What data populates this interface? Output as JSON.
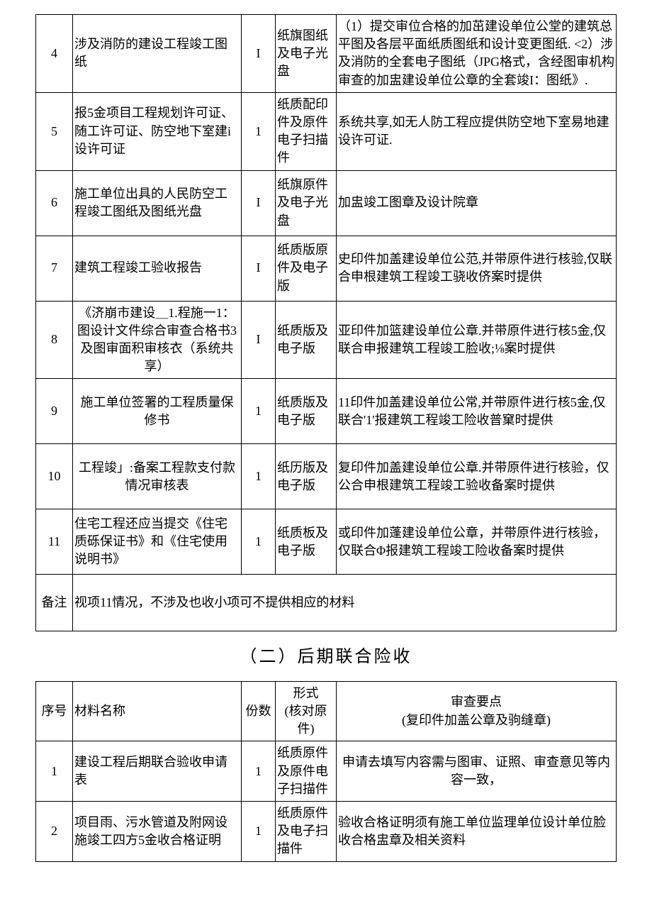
{
  "table1": {
    "rows": [
      {
        "seq": "4",
        "name": "涉及消防的建设工程竣工图纸",
        "qty": "I",
        "form": "纸旗图纸及电子光盘",
        "point": "（1）提交审位合格的加茁建设单位公堂的建筑总平图及各层平面纸质图纸和设计变更图纸.\n<2）涉及消防的全套电子图纸（JPG格式，含经图审机构审查的加盅建设单位公章的全套竣I：图纸》."
      },
      {
        "seq": "5",
        "name": "报5金项目工程规划许可证、随工许可证、防空地下室建i设许可证",
        "qty": "1",
        "form": "纸质配印件及原件电子扫描件",
        "point": "系统共享,如无人防工程应提供防空地下室易地建设许可证."
      },
      {
        "seq": "6",
        "name": "施工单位出具的人民防空工程竣工图纸及图纸光盘",
        "qty": "I",
        "form": "纸旗原件及电子光盘",
        "point": "加盅竣工图章及设计院章"
      },
      {
        "seq": "7",
        "name": "建筑工程竣工验收报告",
        "qty": "I",
        "form": "纸质版原件及电子版",
        "point": "史印件加盖建设单位公范,并带原件进行核验,仅联合申根建筑工程竣工骁收侪案时提供"
      },
      {
        "seq": "8",
        "name": "《济崩市建设＿1.程施一1：图设计文件综合审查合格书3及图审面积审核衣（系统共享）",
        "qty": "I",
        "form": "纸质版及电子版",
        "point": "亚印件加篮建设单位公章.并带原件进行核5金,仅联合申报建筑工程竣工脸收;⅛案时提供"
      },
      {
        "seq": "9",
        "name": "施工单位签署的工程质量保修书",
        "qty": "1",
        "form": "纸质版及电子版",
        "point": "11印件加盖建设单位公常,并带原件进行核5金,仅联合'1'报建筑工程竣工险收普窠时提供"
      },
      {
        "seq": "10",
        "name": "工程竣」:备案工程款支付款情况审核表",
        "qty": "1",
        "form": "纸历版及电子版",
        "point": "复印件加盖建设单位公章.并带原件进行核验，仅公合申根建筑工程竣工验收备案时提供"
      },
      {
        "seq": "11",
        "name": "住宅工程还应当提交《住宅质砾保证书》和《住宅使用说明书》",
        "qty": "1",
        "form": "纸质板及电子版",
        "point": "或印件加蓬建设单位公章，并带原件进行核验，仅联合Φ报建筑工程竣工险收备案时提供"
      }
    ],
    "note_label": "备注",
    "note_text": "视项11情况，不涉及也收小项可不提供相应的材料"
  },
  "section2_title": "（二）后期联合险收",
  "table2": {
    "headers": {
      "seq": "序号",
      "name": "材料名称",
      "qty": "份数",
      "form": "形式\n(核对原件)",
      "point": "审查要点\n(复印件加盖公章及驹缝章)"
    },
    "rows": [
      {
        "seq": "1",
        "name": "建设工程后期联合验收申请表",
        "qty": "1",
        "form": "纸质原件及原件电子扫描件",
        "point": "申请去填写内容需与图审、证照、审查意见等内容一致，"
      },
      {
        "seq": "2",
        "name": "项目雨、污水管道及附网设施竣工四方5金收合格证明",
        "qty": "1",
        "form": "纸质原件及电子扫描件",
        "point": "验收合格证明须有施工单位监理单位设计单位脸收合格盅章及相关资料"
      }
    ]
  }
}
